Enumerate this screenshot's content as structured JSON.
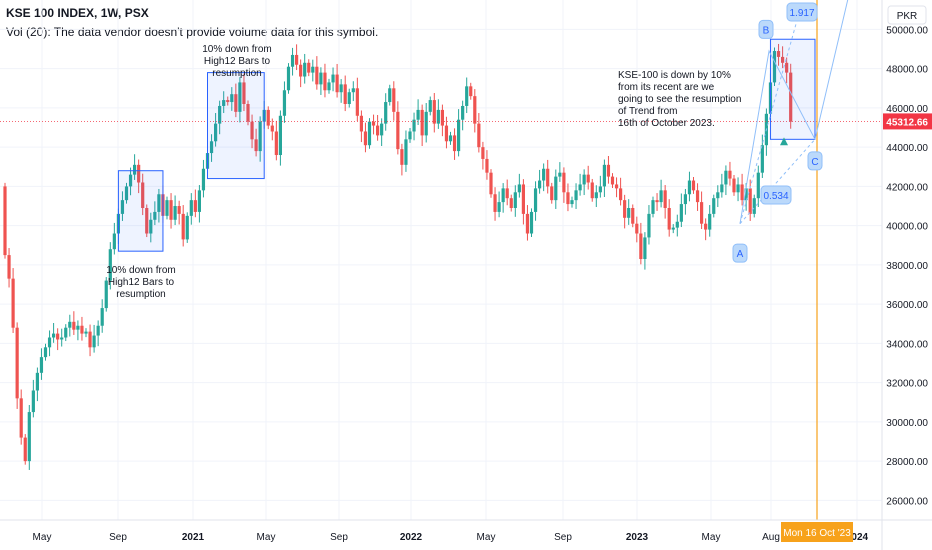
{
  "header": {
    "title": "KSE 100 INDEX, 1W, PSX",
    "volume_note": "Vol (20): The data vendor doesn't provide volume data for this symbol."
  },
  "currency": "PKR",
  "current_price_label": "45312.66",
  "crosshair_date_label": "Mon 16 Oct '23",
  "annotations": {
    "box1_text": [
      "10% down from",
      "High12 Bars to",
      "resumption"
    ],
    "box2_text": [
      "10% down from",
      "High12 Bars to",
      "resumption"
    ],
    "right_text": [
      "KSE-100 is down by 10%",
      "from its recent are we",
      "going to see the resumption",
      "of Trend from",
      "16th of October 2023."
    ],
    "label_a": "A",
    "label_b": "B",
    "label_c": "C",
    "ratio_1": "1.917",
    "ratio_2": "0.534"
  },
  "colors": {
    "up": "#26a69a",
    "down": "#ef5350",
    "box": "#2962ff",
    "crosshair": "#f7a21b",
    "price_tag": "#f23645"
  },
  "chart_data": {
    "type": "candlestick",
    "title": "KSE 100 INDEX, 1W, PSX",
    "ylim": [
      25000,
      51500
    ],
    "y_ticks": [
      "26000.00",
      "28000.00",
      "30000.00",
      "32000.00",
      "34000.00",
      "36000.00",
      "38000.00",
      "40000.00",
      "42000.00",
      "44000.00",
      "46000.00",
      "48000.00",
      "50000.00"
    ],
    "x_ticks": [
      "May",
      "Sep",
      "2021",
      "May",
      "Sep",
      "2022",
      "May",
      "Sep",
      "2023",
      "May",
      "Aug",
      "2024"
    ],
    "last_price": 45312.66,
    "closes": [
      38500,
      37300,
      34800,
      31200,
      29200,
      28000,
      30500,
      31600,
      32500,
      33300,
      33800,
      34300,
      34500,
      34200,
      34300,
      34800,
      35100,
      34700,
      34900,
      34500,
      34600,
      33800,
      34400,
      34900,
      35800,
      37200,
      38800,
      39600,
      40600,
      41300,
      42000,
      42600,
      43100,
      42200,
      40900,
      39600,
      40300,
      40700,
      41600,
      40500,
      41300,
      40300,
      41000,
      40600,
      39300,
      40500,
      41300,
      40700,
      41800,
      42900,
      43700,
      44300,
      45200,
      46100,
      46400,
      46300,
      46700,
      45800,
      47300,
      46200,
      45300,
      44400,
      43800,
      45300,
      45900,
      45100,
      44800,
      43600,
      45600,
      46900,
      48100,
      48700,
      48200,
      47600,
      48300,
      47800,
      48100,
      47200,
      47800,
      46900,
      47300,
      47700,
      46800,
      47200,
      46200,
      46800,
      47000,
      45600,
      44800,
      44100,
      45300,
      45100,
      44600,
      45200,
      46300,
      47000,
      45800,
      43900,
      43100,
      44400,
      44800,
      45400,
      45900,
      44600,
      45800,
      46400,
      45200,
      45900,
      45100,
      44300,
      44600,
      43800,
      45400,
      46100,
      47100,
      46600,
      45200,
      44000,
      43400,
      42700,
      41600,
      40700,
      41200,
      41900,
      41400,
      40900,
      41700,
      42100,
      40600,
      39600,
      40700,
      41900,
      42300,
      42900,
      42000,
      41300,
      42500,
      42700,
      41700,
      41100,
      41300,
      41800,
      42100,
      42600,
      42200,
      41400,
      41700,
      42000,
      43100,
      42500,
      42100,
      41900,
      41300,
      40400,
      40900,
      40100,
      39600,
      38300,
      39400,
      40600,
      41300,
      41200,
      41800,
      40900,
      39800,
      39900,
      40200,
      41100,
      41600,
      42300,
      41800,
      41200,
      40100,
      39800,
      40600,
      41400,
      41700,
      42100,
      42800,
      42400,
      41700,
      42100,
      41300,
      41900,
      40600,
      41400,
      42700,
      44100,
      45700,
      47300,
      48900,
      48600,
      48300,
      47800,
      45300
    ]
  }
}
